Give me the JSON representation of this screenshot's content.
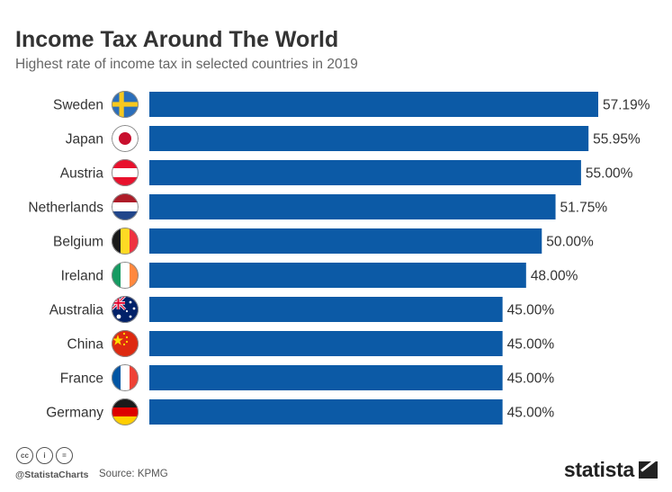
{
  "title": "Income Tax Around The World",
  "subtitle": "Highest rate of income tax in selected countries in 2019",
  "footer": {
    "handle": "@StatistaCharts",
    "source": "Source: KPMG",
    "logo": "statista",
    "cc_icons": [
      "cc",
      "i",
      "="
    ]
  },
  "colors": {
    "bar": "#0c5aa6",
    "text": "#333333"
  },
  "chart_data": {
    "type": "bar",
    "orientation": "horizontal",
    "title": "Income Tax Around The World",
    "subtitle": "Highest rate of income tax in selected countries in 2019",
    "categories": [
      "Sweden",
      "Japan",
      "Austria",
      "Netherlands",
      "Belgium",
      "Ireland",
      "Australia",
      "China",
      "France",
      "Germany"
    ],
    "values": [
      57.19,
      55.95,
      55.0,
      51.75,
      50.0,
      48.0,
      45.0,
      45.0,
      45.0,
      45.0
    ],
    "value_labels": [
      "57.19%",
      "55.95%",
      "55.00%",
      "51.75%",
      "50.00%",
      "48.00%",
      "45.00%",
      "45.00%",
      "45.00%",
      "45.00%"
    ],
    "flag_icons": [
      "sweden-flag-icon",
      "japan-flag-icon",
      "austria-flag-icon",
      "netherlands-flag-icon",
      "belgium-flag-icon",
      "ireland-flag-icon",
      "australia-flag-icon",
      "china-flag-icon",
      "france-flag-icon",
      "germany-flag-icon"
    ],
    "xlim": [
      0,
      57.19
    ],
    "grid": false,
    "legend": "none"
  }
}
